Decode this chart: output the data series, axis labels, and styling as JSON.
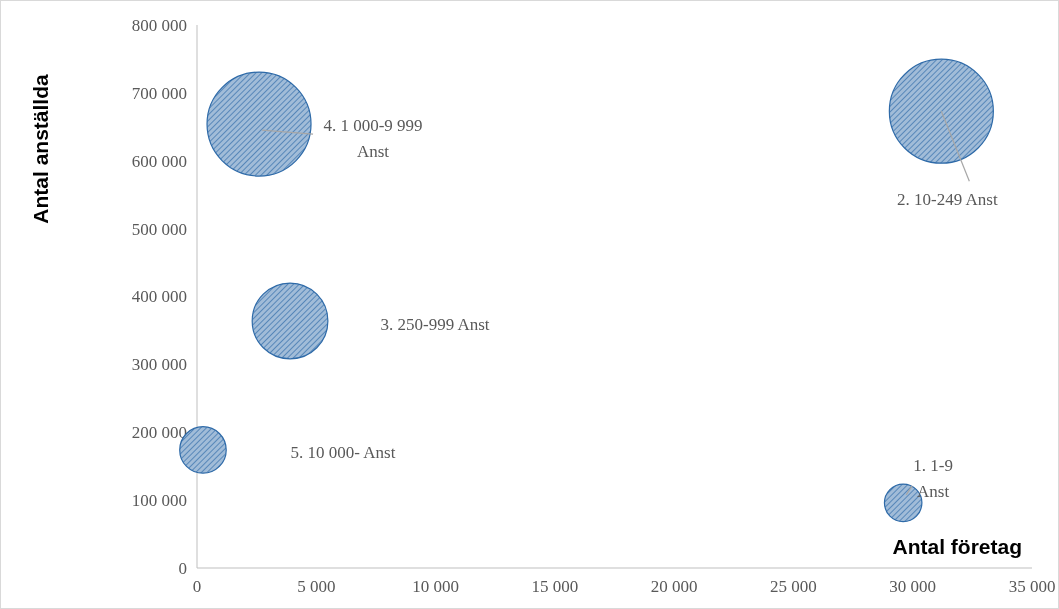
{
  "chart_data": {
    "type": "bubble",
    "xlabel": "Antal företag",
    "ylabel": "Antal anställda",
    "x": [
      29600,
      31200,
      3900,
      2600,
      250
    ],
    "series": [
      {
        "color": "#2e6aa8",
        "values": [
          96000,
          673000,
          364000,
          654000,
          174000
        ],
        "sizes": [
          0.13,
          1,
          0.53,
          1,
          0.2
        ]
      }
    ],
    "xlim": [
      0,
      35000
    ],
    "xticks": [
      0,
      {
        "value": 5000,
        "label": "5 000"
      },
      {
        "value": 10000,
        "label": "10 000"
      },
      {
        "value": 15000,
        "label": "15 000"
      },
      {
        "value": 20000,
        "label": "20 000"
      },
      {
        "value": 25000,
        "label": "25 000"
      },
      {
        "value": 30000,
        "label": "30 000"
      },
      {
        "value": 35000,
        "label": "35 000"
      }
    ],
    "ylim": [
      0,
      800000
    ],
    "yticks": [
      0,
      {
        "value": 100000,
        "label": "100 000"
      },
      {
        "value": 200000,
        "label": "200 000"
      },
      {
        "value": 300000,
        "label": "300 000"
      },
      {
        "value": 400000,
        "label": "400 000"
      },
      {
        "value": 500000,
        "label": "500 000"
      },
      {
        "value": 600000,
        "label": "600 000"
      },
      {
        "value": 700000,
        "label": "700 000"
      },
      {
        "value": 800000,
        "label": "800 000"
      }
    ],
    "grid": false,
    "annotations": [
      {
        "text": "1. 1-9 Anst",
        "x": 29600,
        "y": 96000
      },
      {
        "text": "2. 10-249 Anst",
        "x": 31200,
        "y": 673000
      },
      "3. 250-999 Anst",
      {
        "text": "4. 1 000-9 999 Anst",
        "x": 2600,
        "y": 654000
      },
      "5. 10 000- Anst"
    ]
  }
}
